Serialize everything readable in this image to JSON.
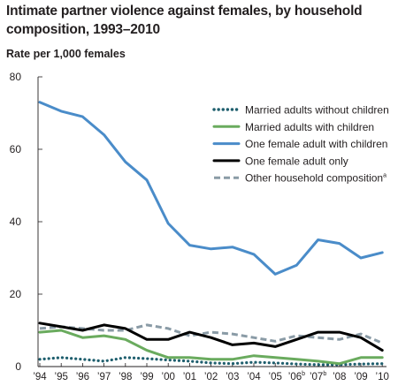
{
  "chart_data": {
    "type": "line",
    "title_line1": "Intimate partner violence against females, by household",
    "title_line2": "composition, 1993–2010",
    "ylabel": "Rate per 1,000 females",
    "ylim": [
      0,
      80
    ],
    "yticks": [
      "0",
      "20",
      "40",
      "60",
      "80"
    ],
    "x_tick_labels": [
      {
        "text": "’94",
        "sup": ""
      },
      {
        "text": "’95",
        "sup": ""
      },
      {
        "text": "’96",
        "sup": ""
      },
      {
        "text": "’97",
        "sup": ""
      },
      {
        "text": "’98",
        "sup": ""
      },
      {
        "text": "’99",
        "sup": ""
      },
      {
        "text": "’00",
        "sup": ""
      },
      {
        "text": "’01",
        "sup": ""
      },
      {
        "text": "’02",
        "sup": ""
      },
      {
        "text": "’03",
        "sup": ""
      },
      {
        "text": "’04",
        "sup": ""
      },
      {
        "text": "’05",
        "sup": ""
      },
      {
        "text": "’06",
        "sup": "b"
      },
      {
        "text": "’07",
        "sup": "b"
      },
      {
        "text": "’08",
        "sup": ""
      },
      {
        "text": "’09",
        "sup": ""
      },
      {
        "text": "’10",
        "sup": ""
      }
    ],
    "x": [
      "1994",
      "1995",
      "1996",
      "1997",
      "1998",
      "1999",
      "2000",
      "2001",
      "2002",
      "2003",
      "2004",
      "2005",
      "2006",
      "2007",
      "2008",
      "2009",
      "2010"
    ],
    "grid": false,
    "legend_position": "top-right",
    "series": [
      {
        "name": "Married adults without children",
        "sup": "",
        "color": "#1f5f6e",
        "style": "dotted",
        "values": [
          2.0,
          2.5,
          2.0,
          1.5,
          2.5,
          2.2,
          1.8,
          1.5,
          1.0,
          0.8,
          1.2,
          1.0,
          0.7,
          0.5,
          0.5,
          0.7,
          0.8
        ]
      },
      {
        "name": "Married adults with children",
        "sup": "",
        "color": "#6aab5e",
        "style": "solid",
        "values": [
          9.5,
          10.0,
          8.0,
          8.5,
          7.5,
          4.5,
          2.5,
          2.5,
          2.0,
          2.0,
          3.0,
          2.5,
          2.0,
          1.5,
          0.8,
          2.5,
          2.5
        ]
      },
      {
        "name": "One female adult with children",
        "sup": "",
        "color": "#4a8cc9",
        "style": "solid",
        "values": [
          73.0,
          70.5,
          69.0,
          64.0,
          56.5,
          51.5,
          39.5,
          33.5,
          32.5,
          33.0,
          31.0,
          25.5,
          28.0,
          35.0,
          34.0,
          30.0,
          31.5
        ]
      },
      {
        "name": "One female adult only",
        "sup": "",
        "color": "#000000",
        "style": "solid",
        "values": [
          12.0,
          11.0,
          10.0,
          11.5,
          10.5,
          7.5,
          7.5,
          9.5,
          8.0,
          6.0,
          6.5,
          5.5,
          7.5,
          9.5,
          9.5,
          8.0,
          4.5
        ]
      },
      {
        "name": "Other household composition",
        "sup": "a",
        "color": "#8a9ba6",
        "style": "dashed",
        "values": [
          10.5,
          11.0,
          10.5,
          10.0,
          10.0,
          11.5,
          10.5,
          8.5,
          9.5,
          9.0,
          8.0,
          7.0,
          8.5,
          8.0,
          7.5,
          9.0,
          6.5
        ]
      }
    ]
  }
}
